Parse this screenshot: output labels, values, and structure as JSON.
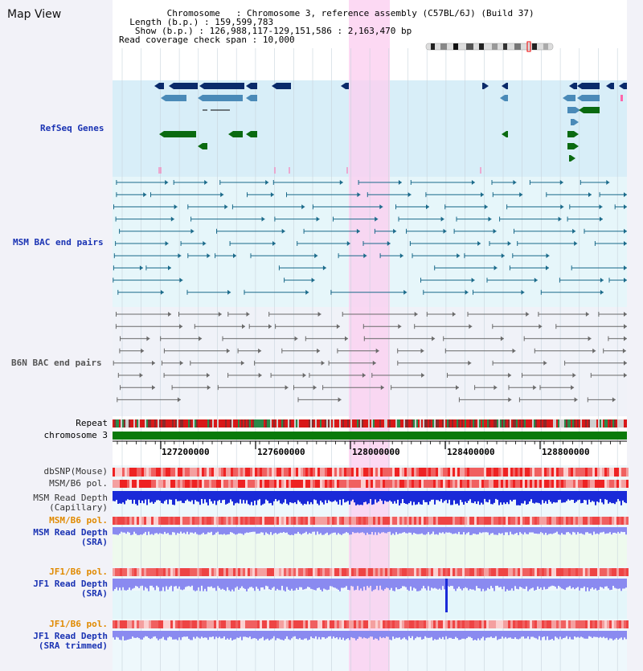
{
  "app_title": "Map View",
  "info": {
    "chromosome_label": "Chromosome",
    "chromosome_value": "Chromosome 3, reference assembly (C57BL/6J) (Build 37)",
    "length_label": "Length (b.p.)",
    "length_value": "159,599,783",
    "show_label": "Show (b.p.)",
    "show_value": "126,988,117-129,151,586 : 2,163,470 bp",
    "coverage_label": "Read coverage check span",
    "coverage_value": "10,000"
  },
  "tracks": {
    "refseq": "RefSeq Genes",
    "msm_bac": "MSM BAC end pairs",
    "b6n_bac": "B6N BAC end pairs",
    "repeat": "Repeat",
    "chromosome": "chromosome 3",
    "dbsnp": "dbSNP(Mouse)",
    "msm_pol": "MSM/B6 pol.",
    "msm_depth_cap_1": "MSM Read Depth",
    "msm_depth_cap_2": "(Capillary)",
    "msm_pol_2": "MSM/B6 pol.",
    "msm_depth_sra_1": "MSM Read Depth",
    "msm_depth_sra_2": "(SRA)",
    "jf1_pol": "JF1/B6 pol.",
    "jf1_depth_1": "JF1 Read Depth",
    "jf1_depth_2": "(SRA)",
    "jf1_pol_2": "JF1/B6 pol.",
    "jf1_trim_1": "JF1 Read Depth",
    "jf1_trim_2": "(SRA trimmed)"
  },
  "axis": {
    "ticks": [
      "127200000",
      "127600000",
      "128000000",
      "128400000",
      "128800000"
    ]
  },
  "colors": {
    "refseq_bg": "#d8eef8",
    "bac_bg": "#e6f6fa",
    "b6n_bg": "#f0f2f8",
    "highlight": "#fbd0f0",
    "gene_dark": "#0a2a6a",
    "gene_mid": "#4a8ab8",
    "gene_green": "#0a6a10",
    "msm_bac": "#1a6a8a",
    "b6n_bac": "#6a6a6a",
    "chromosome": "#0a7a0a",
    "pol_red": "#e83030",
    "depth_blue": "#1a2ad8",
    "depth_light": "#8a8af0"
  }
}
